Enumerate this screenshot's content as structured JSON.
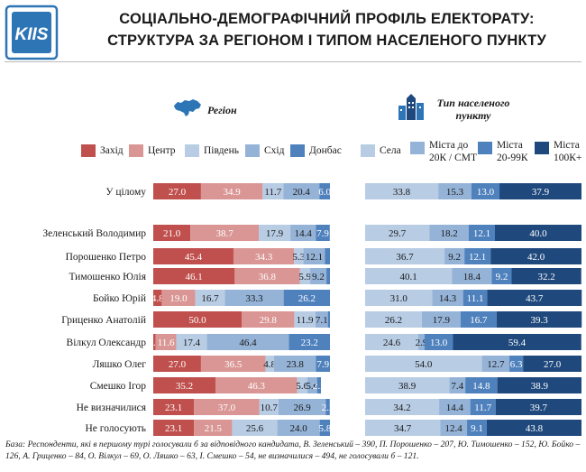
{
  "header": {
    "logo_text": "KIIS",
    "title_line1": "СОЦІАЛЬНО-ДЕМОГРАФІЧНИЙ ПРОФІЛЬ ЕЛЕКТОРАТУ:",
    "title_line2": "СТРУКТУРА ЗА РЕГІОНОМ І ТИПОМ НАСЕЛЕНОГО ПУНКТУ"
  },
  "panels": {
    "region": {
      "title": "Регіон",
      "legend": [
        {
          "label": "Захід",
          "color": "#c0504d"
        },
        {
          "label": "Центр",
          "color": "#d99694"
        },
        {
          "label": "Південь",
          "color": "#b8cce4"
        },
        {
          "label": "Схід",
          "color": "#95b3d7"
        },
        {
          "label": "Донбас",
          "color": "#4f81bd"
        }
      ]
    },
    "settlement": {
      "title_line1": "Тип населеного",
      "title_line2": "пункту",
      "legend": [
        {
          "label": "Села",
          "color": "#b8cce4"
        },
        {
          "label": "Міста до 20К / СМТ",
          "line1": "Міста до",
          "line2": "20К / СМТ",
          "color": "#95b3d7"
        },
        {
          "label": "Міста 20-99К",
          "line1": "Міста",
          "line2": "20-99К",
          "color": "#4f81bd"
        },
        {
          "label": "Міста 100К+",
          "line1": "Міста",
          "line2": "100К+",
          "color": "#1f497d"
        }
      ]
    }
  },
  "chart_data": [
    {
      "type": "bar",
      "stacked": true,
      "orientation": "horizontal",
      "title": "Регіон",
      "xlim": [
        0,
        100
      ],
      "categories": [
        "У цілому",
        "Зеленський Володимир",
        "Порошенко Петро",
        "Тимошенко Юлія",
        "Бойко Юрій",
        "Гриценко Анатолій",
        "Вілкул Олександр",
        "Ляшко Олег",
        "Смешко Ігор",
        "Не визначилися",
        "Не голосують"
      ],
      "series": [
        {
          "name": "Захід",
          "values": [
            27.0,
            21.0,
            45.4,
            46.1,
            4.8,
            50.0,
            1.4,
            27.0,
            35.2,
            23.1,
            23.1
          ]
        },
        {
          "name": "Центр",
          "values": [
            34.9,
            38.7,
            34.3,
            36.8,
            19.0,
            29.8,
            11.6,
            36.5,
            46.3,
            37.0,
            21.5
          ]
        },
        {
          "name": "Південь",
          "values": [
            11.7,
            17.9,
            5.3,
            5.9,
            16.7,
            11.9,
            17.4,
            4.8,
            5.6,
            10.7,
            25.6
          ]
        },
        {
          "name": "Схід",
          "values": [
            20.4,
            14.4,
            12.1,
            9.2,
            33.3,
            7.1,
            46.4,
            23.8,
            5.6,
            26.9,
            24.0
          ]
        },
        {
          "name": "Донбас",
          "values": [
            6.0,
            7.9,
            2.9,
            2.0,
            26.2,
            1.2,
            23.2,
            7.9,
            2.2,
            2.2,
            5.8
          ]
        }
      ],
      "labels": [
        [
          "27.0",
          "34.9",
          "11.7",
          "20.4",
          "6.0"
        ],
        [
          "21.0",
          "38.7",
          "17.9",
          "14.4",
          "7.9"
        ],
        [
          "45.4",
          "34.3",
          "5.3",
          "12.1",
          ""
        ],
        [
          "46.1",
          "36.8",
          "5.9",
          "9.2",
          ""
        ],
        [
          "4.8",
          "19.0",
          "16.7",
          "33.3",
          "26.2"
        ],
        [
          "50.0",
          "29.8",
          "11.9",
          "7.1",
          ""
        ],
        [
          "1.4",
          "11.6",
          "17.4",
          "46.4",
          "23.2"
        ],
        [
          "27.0",
          "36.5",
          "4.8",
          "23.8",
          "7.9"
        ],
        [
          "35.2",
          "46.3",
          "5.6",
          "5.6",
          "2.2"
        ],
        [
          "23.1",
          "37.0",
          "10.7",
          "26.9",
          "2.2"
        ],
        [
          "23.1",
          "21.5",
          "25.6",
          "24.0",
          "5.8"
        ]
      ]
    },
    {
      "type": "bar",
      "stacked": true,
      "orientation": "horizontal",
      "title": "Тип населеного пункту",
      "xlim": [
        0,
        100
      ],
      "categories": [
        "У цілому",
        "Зеленський Володимир",
        "Порошенко Петро",
        "Тимошенко Юлія",
        "Бойко Юрій",
        "Гриценко Анатолій",
        "Вілкул Олександр",
        "Ляшко Олег",
        "Смешко Ігор",
        "Не визначилися",
        "Не голосують"
      ],
      "series": [
        {
          "name": "Села",
          "values": [
            33.8,
            29.7,
            36.7,
            40.1,
            31.0,
            26.2,
            24.6,
            54.0,
            38.9,
            34.2,
            34.7
          ]
        },
        {
          "name": "Міста до 20К / СМТ",
          "values": [
            15.3,
            18.2,
            9.2,
            18.4,
            14.3,
            17.9,
            2.9,
            12.7,
            7.4,
            14.4,
            12.4
          ]
        },
        {
          "name": "Міста 20-99К",
          "values": [
            13.0,
            12.1,
            12.1,
            9.2,
            11.1,
            16.7,
            13.0,
            6.3,
            14.8,
            11.7,
            9.1
          ]
        },
        {
          "name": "Міста 100К+",
          "values": [
            37.9,
            40.0,
            42.0,
            32.2,
            43.7,
            39.3,
            59.4,
            27.0,
            38.9,
            39.7,
            43.8
          ]
        }
      ],
      "labels": [
        [
          "33.8",
          "15.3",
          "13.0",
          "37.9"
        ],
        [
          "29.7",
          "18.2",
          "12.1",
          "40.0"
        ],
        [
          "36.7",
          "9.2",
          "12.1",
          "42.0"
        ],
        [
          "40.1",
          "18.4",
          "9.2",
          "32.2"
        ],
        [
          "31.0",
          "14.3",
          "11.1",
          "43.7"
        ],
        [
          "26.2",
          "17.9",
          "16.7",
          "39.3"
        ],
        [
          "24.6",
          "2.9",
          "13.0",
          "59.4"
        ],
        [
          "54.0",
          "12.7",
          "6.3",
          "27.0"
        ],
        [
          "38.9",
          "7.4",
          "14.8",
          "38.9"
        ],
        [
          "34.2",
          "14.4",
          "11.7",
          "39.7"
        ],
        [
          "34.7",
          "12.4",
          "9.1",
          "43.8"
        ]
      ]
    }
  ],
  "footnote": "База: Респонденти, які в першому турі голосували б за відповідного кандидата, В. Зеленський – 390, П. Порошенко – 207, Ю. Тимошенко – 152, Ю. Бойко – 126, А. Гриценко – 84, О. Вілкул – 69, О. Ляшко – 63, І. Смешко – 54, не визначилися – 494, не голосували б – 121."
}
